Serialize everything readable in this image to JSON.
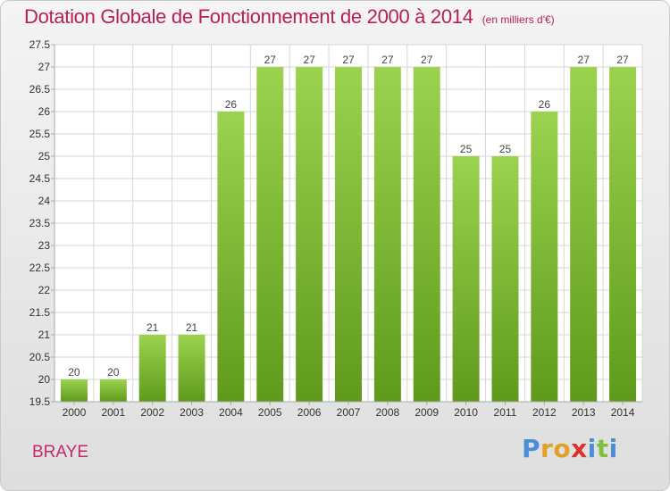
{
  "header": {
    "title": "Dotation Globale de Fonctionnement de 2000 à 2014",
    "subtitle": "(en milliers d'€)"
  },
  "footer": {
    "commune": "BRAYE",
    "brand": [
      "P",
      "r",
      "o",
      "x",
      "i",
      "t",
      "i"
    ],
    "brand_colors": [
      "#4a8ed8",
      "#e0a126",
      "#e0a126",
      "#d9342b",
      "#4a8ed8",
      "#7fbf3a",
      "#4a8ed8"
    ]
  },
  "colors": {
    "bar_light": "#9bd34f",
    "bar_dark": "#5f9a1c",
    "grid": "#d6d6d6",
    "axis": "#aaaaaa"
  },
  "chart_data": {
    "type": "bar",
    "categories": [
      "2000",
      "2001",
      "2002",
      "2003",
      "2004",
      "2005",
      "2006",
      "2007",
      "2008",
      "2009",
      "2010",
      "2011",
      "2012",
      "2013",
      "2014"
    ],
    "values": [
      20,
      20,
      21,
      21,
      26,
      27,
      27,
      27,
      27,
      27,
      25,
      25,
      26,
      27,
      27
    ],
    "title": "Dotation Globale de Fonctionnement de 2000 à 2014",
    "subtitle": "(en milliers d'€)",
    "ylim": [
      19.5,
      27.5
    ],
    "yticks": [
      "19.5",
      "20",
      "20.5",
      "21",
      "21.5",
      "22",
      "22.5",
      "23",
      "23.5",
      "24",
      "24.5",
      "25",
      "25.5",
      "26",
      "26.5",
      "27",
      "27.5"
    ],
    "grid": true
  }
}
